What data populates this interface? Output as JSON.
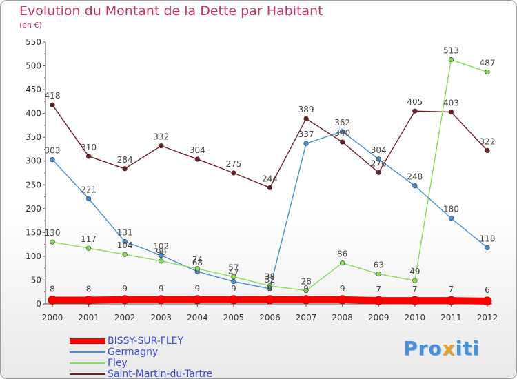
{
  "title": "Evolution du Montant de la Dette par Habitant",
  "subtitle": "(en €)",
  "logo": {
    "text": "Proxiti"
  },
  "chart_data": {
    "type": "line",
    "title": "Evolution du Montant de la Dette par Habitant",
    "subtitle": "(en €)",
    "x": [
      "2000",
      "2001",
      "2002",
      "2003",
      "2004",
      "2005",
      "2006",
      "2007",
      "2008",
      "2009",
      "2010",
      "2011",
      "2012"
    ],
    "ylim": [
      0,
      550
    ],
    "yticks": [
      0,
      50,
      100,
      150,
      200,
      250,
      300,
      350,
      400,
      450,
      500,
      550
    ],
    "grid": false,
    "legend_placement": "bottom-left",
    "series": [
      {
        "name": "BISSY-SUR-FLEY",
        "color": "#ff0000",
        "values": [
          8,
          8,
          9,
          9,
          9,
          9,
          9,
          9,
          9,
          7,
          7,
          7,
          6
        ]
      },
      {
        "name": "Germagny",
        "color": "#4a8fd0",
        "values": [
          303,
          221,
          131,
          102,
          68,
          47,
          32,
          337,
          362,
          304,
          248,
          180,
          118
        ]
      },
      {
        "name": "Fley",
        "color": "#88dd55",
        "values": [
          130,
          117,
          104,
          90,
          74,
          57,
          38,
          28,
          86,
          63,
          49,
          513,
          487
        ]
      },
      {
        "name": "Saint-Martin-du-Tartre",
        "color": "#6b1f24",
        "values": [
          418,
          310,
          284,
          332,
          304,
          275,
          244,
          389,
          340,
          276,
          405,
          403,
          322
        ]
      }
    ]
  }
}
